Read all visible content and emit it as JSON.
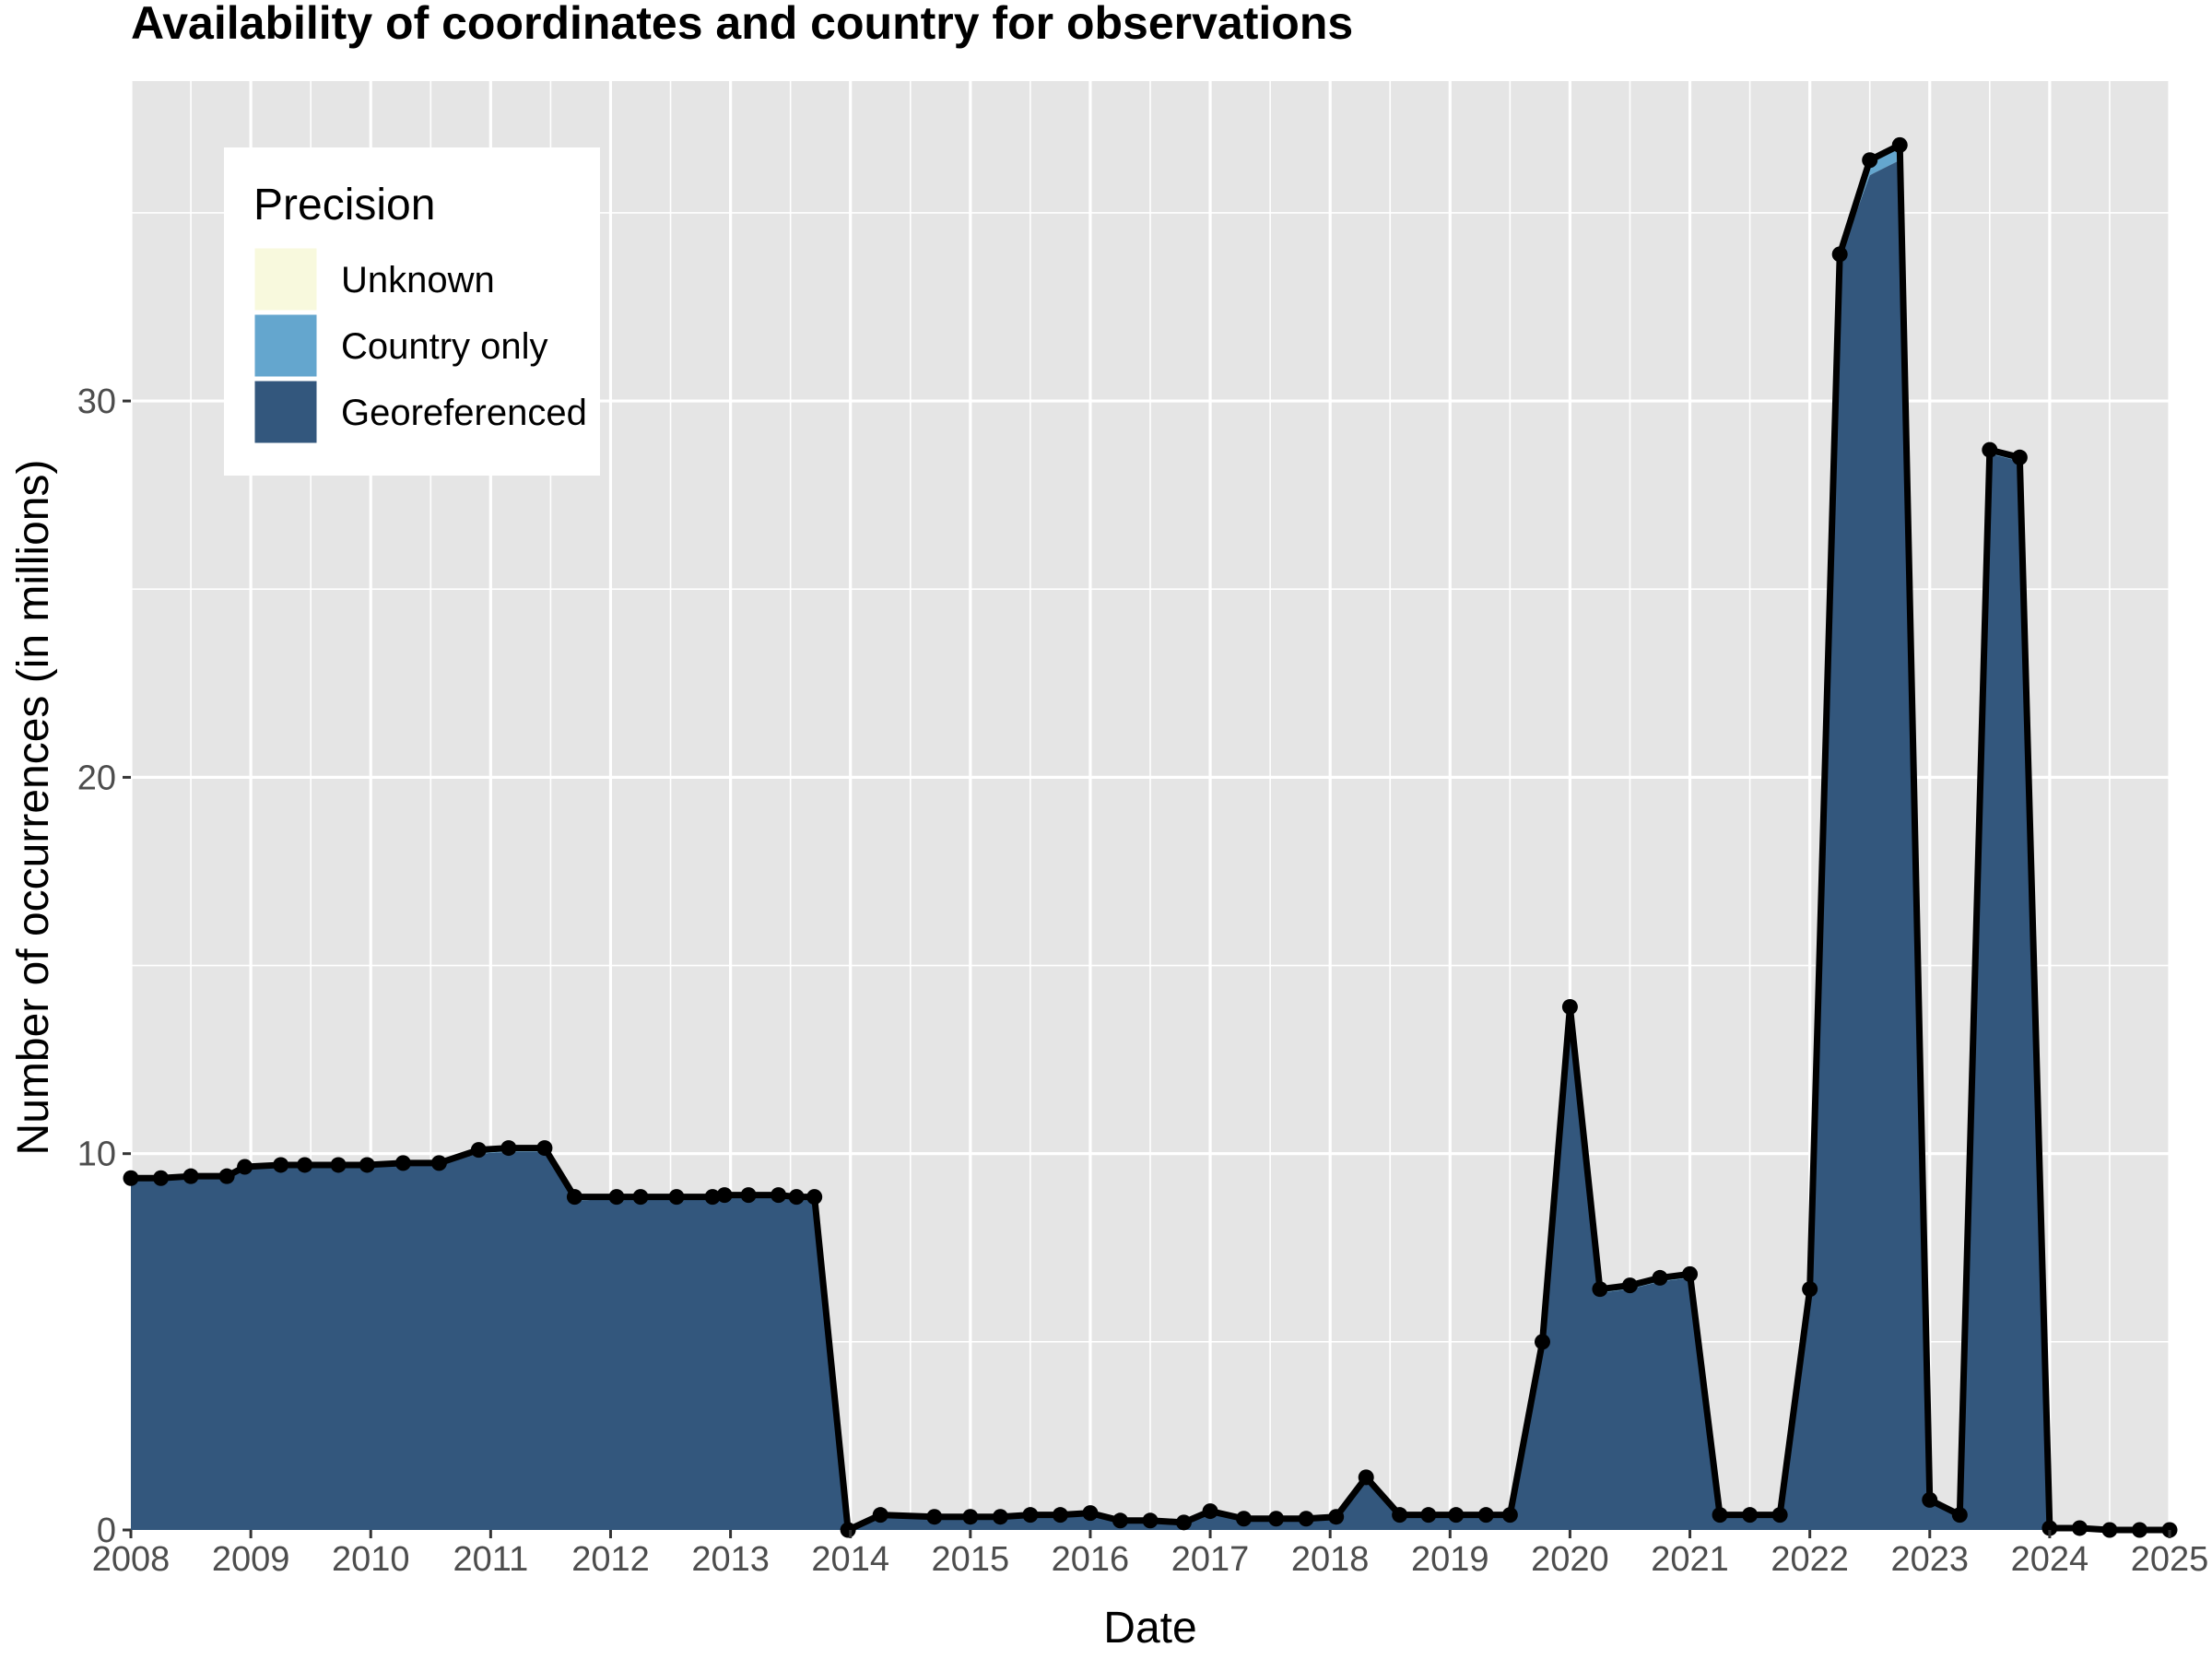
{
  "colors": {
    "unknown": "#f8f9dd",
    "country_only": "#64a6ce",
    "georeferenced": "#33577d",
    "panel": "#e5e5e5",
    "grid": "#ffffff",
    "line": "#000000"
  },
  "chart_data": {
    "type": "area",
    "title": "Availability of coordinates and country for observations",
    "xlabel": "Date",
    "ylabel": "Number of occurrences (in millions)",
    "xlim": [
      2008,
      2025
    ],
    "ylim": [
      0,
      38.5
    ],
    "x_ticks": [
      2008,
      2009,
      2010,
      2011,
      2012,
      2013,
      2014,
      2015,
      2016,
      2017,
      2018,
      2019,
      2020,
      2021,
      2022,
      2023,
      2024,
      2025
    ],
    "x_tick_labels": [
      "2008",
      "2009",
      "2010",
      "2011",
      "2012",
      "2013",
      "2014",
      "2015",
      "2016",
      "2017",
      "2018",
      "2019",
      "2020",
      "2021",
      "2022",
      "2023",
      "2024",
      "2025"
    ],
    "y_ticks": [
      0,
      10,
      20,
      30
    ],
    "y_tick_labels": [
      "0",
      "10",
      "20",
      "30"
    ],
    "grid": true,
    "legend": {
      "title": "Precision",
      "position": "top-left",
      "entries": [
        {
          "label": "Unknown",
          "color_key": "unknown"
        },
        {
          "label": "Country only",
          "color_key": "country_only"
        },
        {
          "label": "Georeferenced",
          "color_key": "georeferenced"
        }
      ]
    },
    "x": [
      2008.0,
      2008.25,
      2008.5,
      2008.8,
      2008.95,
      2009.25,
      2009.45,
      2009.73,
      2009.97,
      2010.27,
      2010.57,
      2010.9,
      2011.15,
      2011.45,
      2011.7,
      2012.05,
      2012.25,
      2012.55,
      2012.85,
      2012.95,
      2013.15,
      2013.4,
      2013.55,
      2013.7,
      2013.98,
      2014.25,
      2014.7,
      2015.0,
      2015.25,
      2015.5,
      2015.75,
      2016.0,
      2016.25,
      2016.5,
      2016.78,
      2017.0,
      2017.28,
      2017.55,
      2017.8,
      2018.05,
      2018.3,
      2018.58,
      2018.82,
      2019.05,
      2019.3,
      2019.5,
      2019.77,
      2020.0,
      2020.25,
      2020.5,
      2020.75,
      2021.0,
      2021.25,
      2021.5,
      2021.75,
      2022.0,
      2022.25,
      2022.5,
      2022.75,
      2023.0,
      2023.25,
      2023.5,
      2023.75,
      2024.0,
      2024.25,
      2024.5,
      2024.75,
      2025.0
    ],
    "series": [
      {
        "name": "Georeferenced",
        "color_key": "georeferenced",
        "values": [
          9.3,
          9.3,
          9.35,
          9.35,
          9.6,
          9.65,
          9.65,
          9.65,
          9.65,
          9.7,
          9.7,
          10.0,
          10.05,
          10.05,
          8.75,
          8.8,
          8.8,
          8.8,
          8.8,
          8.85,
          8.85,
          8.85,
          8.8,
          8.8,
          0.0,
          0.4,
          0.35,
          0.35,
          0.35,
          0.4,
          0.4,
          0.45,
          0.25,
          0.25,
          0.2,
          0.5,
          0.3,
          0.3,
          0.3,
          0.35,
          1.4,
          0.4,
          0.4,
          0.4,
          0.4,
          0.4,
          5.0,
          13.8,
          6.3,
          6.4,
          6.6,
          6.7,
          0.4,
          0.4,
          0.4,
          6.3,
          33.8,
          36.0,
          36.4,
          0.8,
          0.4,
          28.6,
          28.4,
          0.05,
          0.05,
          0.0,
          0.0,
          0.0
        ]
      },
      {
        "name": "Country only",
        "color_key": "country_only",
        "values": [
          0.05,
          0.05,
          0.05,
          0.05,
          0.05,
          0.05,
          0.05,
          0.05,
          0.05,
          0.05,
          0.05,
          0.1,
          0.1,
          0.1,
          0.1,
          0.05,
          0.05,
          0.05,
          0.05,
          0.05,
          0.05,
          0.05,
          0.05,
          0.05,
          0.0,
          0.0,
          0.0,
          0.0,
          0.0,
          0.0,
          0.0,
          0.0,
          0.0,
          0.0,
          0.0,
          0.0,
          0.0,
          0.0,
          0.0,
          0.0,
          0.0,
          0.0,
          0.0,
          0.0,
          0.0,
          0.0,
          0.0,
          0.1,
          0.1,
          0.1,
          0.1,
          0.1,
          0.0,
          0.0,
          0.0,
          0.1,
          0.1,
          0.4,
          0.4,
          0.0,
          0.0,
          0.1,
          0.1,
          0.0,
          0.0,
          0.0,
          0.0,
          0.0
        ]
      },
      {
        "name": "Unknown",
        "color_key": "unknown",
        "values": [
          0.0,
          0.0,
          0.0,
          0.0,
          0.0,
          0.0,
          0.0,
          0.0,
          0.0,
          0.0,
          0.0,
          0.0,
          0.0,
          0.0,
          0.0,
          0.0,
          0.0,
          0.0,
          0.0,
          0.0,
          0.0,
          0.0,
          0.0,
          0.0,
          0.0,
          0.0,
          0.0,
          0.0,
          0.0,
          0.0,
          0.0,
          0.0,
          0.0,
          0.0,
          0.0,
          0.0,
          0.0,
          0.0,
          0.0,
          0.0,
          0.0,
          0.0,
          0.0,
          0.0,
          0.0,
          0.0,
          0.0,
          0.0,
          0.0,
          0.0,
          0.0,
          0.0,
          0.0,
          0.0,
          0.0,
          0.0,
          0.0,
          0.0,
          0.0,
          0.0,
          0.0,
          0.0,
          0.0,
          0.0,
          0.0,
          0.0,
          0.0,
          0.0
        ]
      }
    ]
  }
}
